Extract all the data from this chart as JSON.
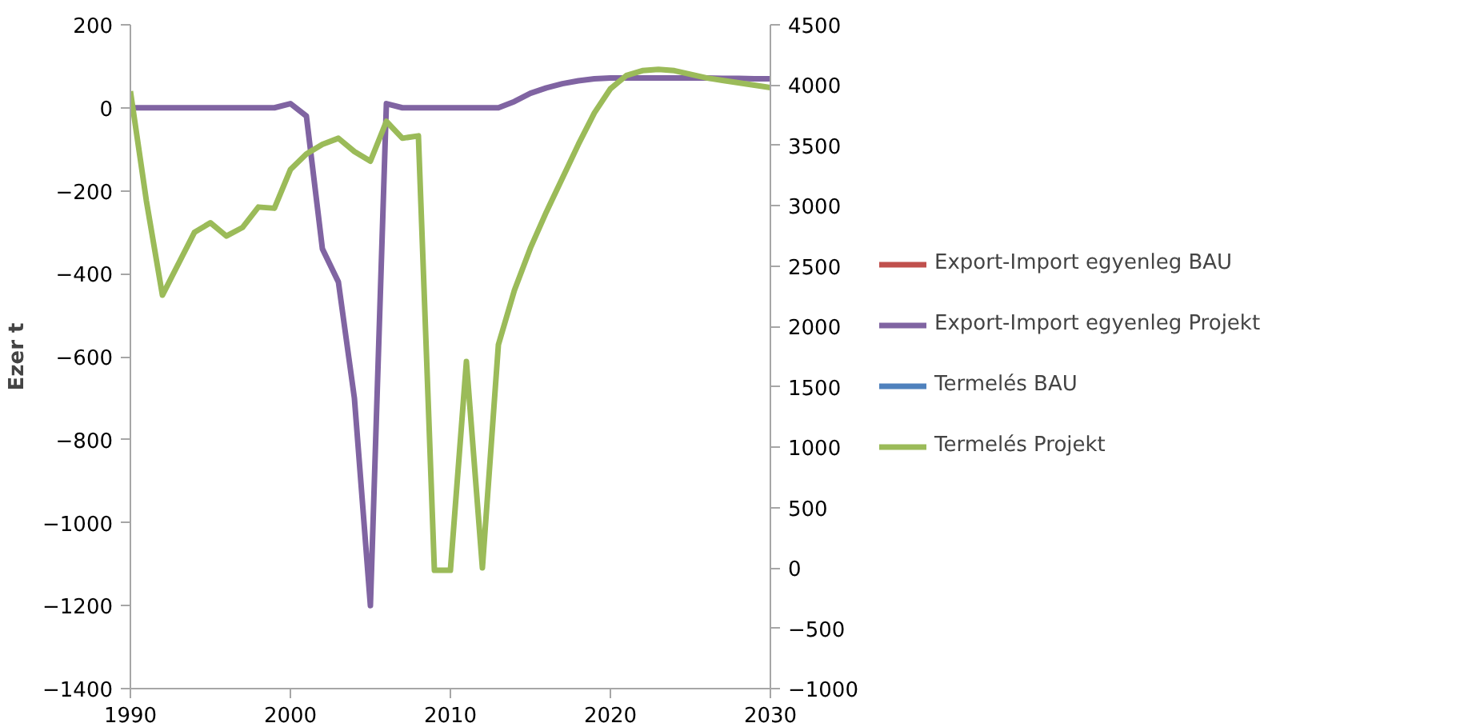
{
  "chart_data": {
    "type": "line",
    "ylabel": "Ezer t",
    "x": [
      1990,
      1991,
      1992,
      1993,
      1994,
      1995,
      1996,
      1997,
      1998,
      1999,
      2000,
      2001,
      2002,
      2003,
      2004,
      2005,
      2006,
      2007,
      2008,
      2009,
      2010,
      2011,
      2012,
      2013,
      2014,
      2015,
      2016,
      2017,
      2018,
      2019,
      2020,
      2021,
      2022,
      2023,
      2024,
      2025,
      2026,
      2027,
      2028,
      2029,
      2030
    ],
    "xlim": [
      1990,
      2030
    ],
    "xticks": [
      1990,
      2000,
      2010,
      2020,
      2030
    ],
    "ylim": [
      -1400,
      200
    ],
    "yticks": [
      -1400,
      -1200,
      -1000,
      -800,
      -600,
      -400,
      -200,
      0,
      200
    ],
    "y2lim": [
      -1000,
      4500
    ],
    "y2ticks": [
      -1000,
      -500,
      0,
      500,
      1000,
      1500,
      2000,
      2500,
      3000,
      3500,
      4000,
      4500
    ],
    "grid": false,
    "legend": "right",
    "line_style": "solid",
    "marker": "none",
    "series": [
      {
        "name": "Export-Import egyenleg BAU",
        "color": "#c0504d",
        "values": [
          null,
          null,
          null,
          null,
          null,
          null,
          null,
          null,
          null,
          null,
          null,
          null,
          null,
          null,
          null,
          null,
          null,
          null,
          null,
          null,
          null,
          null,
          null,
          null,
          null,
          null,
          null,
          null,
          null,
          null,
          null,
          null,
          null,
          null,
          null,
          null,
          null,
          null,
          null,
          null,
          null
        ]
      },
      {
        "name": "Export-Import egyenleg Projekt",
        "color": "#8064a2",
        "values": [
          0,
          0,
          0,
          0,
          0,
          0,
          0,
          0,
          0,
          0,
          10,
          -20,
          -340,
          -420,
          -700,
          -1200,
          10,
          0,
          0,
          0,
          0,
          0,
          0,
          0,
          15,
          35,
          48,
          58,
          65,
          70,
          72,
          72,
          72,
          72,
          72,
          72,
          72,
          71,
          71,
          70,
          70
        ]
      },
      {
        "name": "Termelés BAU",
        "color": "#4f81bd",
        "axis": "y2",
        "values": [
          null,
          null,
          null,
          null,
          null,
          null,
          null,
          null,
          null,
          null,
          null,
          null,
          null,
          null,
          null,
          null,
          null,
          null,
          null,
          null,
          null,
          null,
          null,
          null,
          null,
          null,
          null,
          null,
          null,
          null,
          null,
          null,
          null,
          null,
          null,
          null,
          null,
          null,
          null,
          null,
          null
        ]
      },
      {
        "name": "Termelés Projekt",
        "color": "#9bbb59",
        "axis": "y2",
        "values": [
          3950,
          3040,
          2260,
          2520,
          2780,
          2860,
          2750,
          2820,
          2990,
          2980,
          3300,
          3430,
          3510,
          3560,
          3450,
          3370,
          3700,
          3560,
          3580,
          -20,
          -20,
          1710,
          0,
          1850,
          2300,
          2650,
          2950,
          3230,
          3510,
          3770,
          3970,
          4080,
          4120,
          4130,
          4120,
          4090,
          4060,
          4040,
          4020,
          4000,
          3980
        ]
      }
    ]
  }
}
